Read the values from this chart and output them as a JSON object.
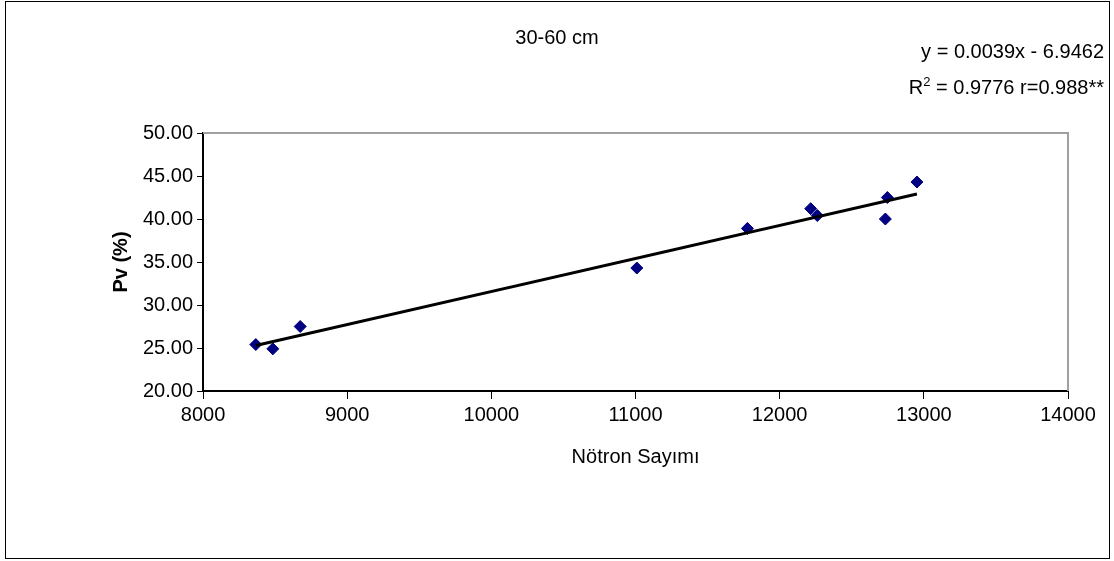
{
  "chart_data": {
    "type": "scatter",
    "title": "30-60 cm",
    "xlabel": "Nötron Sayımı",
    "ylabel": "Pv (%)",
    "annotations": [
      "y = 0.0039x - 6.9462",
      "R$^{2}$ = 0.9776 r=0.988**"
    ],
    "series": [
      {
        "color": "#000080",
        "marker": "diamond",
        "x": [
          8366,
          8484,
          8674,
          11009,
          11776,
          12215,
          12261,
          12747,
          12733,
          12952
        ],
        "values": [
          25.4,
          24.9,
          27.5,
          34.3,
          38.9,
          41.2,
          40.4,
          42.5,
          40.0,
          44.3
        ]
      },
      {
        "type": "line",
        "color": "#000000",
        "marker": "none",
        "x": [
          8366,
          12952
        ],
        "values": [
          25.3,
          42.9
        ]
      }
    ],
    "xlim": [
      8000,
      14000
    ],
    "xticks": [
      8000,
      9000,
      10000,
      11000,
      12000,
      13000,
      14000
    ],
    "ylim": [
      20,
      50
    ],
    "yticks": [
      {
        "value": 20,
        "label": "20.00"
      },
      {
        "value": 25,
        "label": "25.00"
      },
      {
        "value": 30,
        "label": "30.00"
      },
      {
        "value": 35,
        "label": "35.00"
      },
      {
        "value": 40,
        "label": "40.00"
      },
      {
        "value": 45,
        "label": "45.00"
      },
      {
        "value": 50,
        "label": "50.00"
      }
    ],
    "grid": false,
    "legend": false
  }
}
